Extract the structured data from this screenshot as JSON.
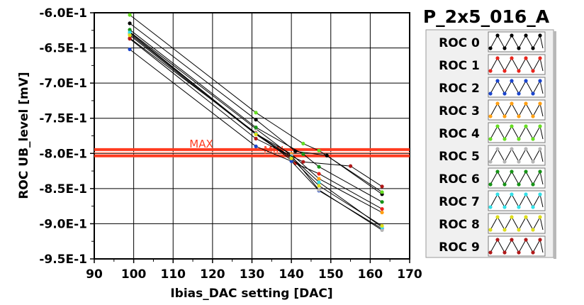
{
  "chart_data": {
    "type": "line",
    "title": "",
    "xlabel": "Ibias_DAC setting [DAC]",
    "ylabel": "ROC UB_level [mV]",
    "xlim": [
      90,
      170
    ],
    "ylim": [
      -0.95,
      -0.6
    ],
    "x_ticks": [
      "90",
      "100",
      "110",
      "120",
      "130",
      "140",
      "150",
      "160",
      "170"
    ],
    "y_ticks": [
      "-6.0E-1",
      "-6.5E-1",
      "-7.0E-1",
      "-7.5E-1",
      "-8.0E-1",
      "-8.5E-1",
      "-9.0E-1",
      "-9.5E-1"
    ],
    "grid": true,
    "legend_position": "right",
    "legend_title": "P_2x5_016_A",
    "reference_lines": [
      {
        "label": "MAX",
        "y": -0.7945,
        "color": "#ff3b1f"
      },
      {
        "label": "MIN",
        "y": -0.8035,
        "color": "#ff3b1f"
      }
    ],
    "series": [
      {
        "name": "ROC 0",
        "color": "#000000",
        "x": [
          99,
          131,
          141,
          149,
          163
        ],
        "y": [
          -0.615,
          -0.752,
          -0.797,
          -0.803,
          -0.858
        ]
      },
      {
        "name": "ROC 1",
        "color": "#e8241c",
        "x": [
          99,
          131,
          141,
          147,
          163
        ],
        "y": [
          -0.636,
          -0.771,
          -0.814,
          -0.829,
          -0.879
        ]
      },
      {
        "name": "ROC 2",
        "color": "#1a44cc",
        "x": [
          99,
          131,
          140,
          147,
          163
        ],
        "y": [
          -0.652,
          -0.79,
          -0.811,
          -0.853,
          -0.907
        ]
      },
      {
        "name": "ROC 3",
        "color": "#ff9f12",
        "x": [
          99,
          131,
          140,
          147,
          163
        ],
        "y": [
          -0.63,
          -0.772,
          -0.801,
          -0.836,
          -0.884
        ]
      },
      {
        "name": "ROC 4",
        "color": "#66dd22",
        "x": [
          99,
          131,
          143,
          147,
          163
        ],
        "y": [
          -0.603,
          -0.742,
          -0.786,
          -0.796,
          -0.855
        ]
      },
      {
        "name": "ROC 5",
        "color": "#b5b5b5",
        "x": [
          99,
          131,
          140,
          147,
          163
        ],
        "y": [
          -0.627,
          -0.765,
          -0.803,
          -0.852,
          -0.909
        ]
      },
      {
        "name": "ROC 6",
        "color": "#169216",
        "x": [
          99,
          131,
          143,
          147,
          163
        ],
        "y": [
          -0.624,
          -0.763,
          -0.801,
          -0.819,
          -0.869
        ]
      },
      {
        "name": "ROC 7",
        "color": "#33e0e8",
        "x": [
          99,
          131,
          140,
          147,
          163
        ],
        "y": [
          -0.628,
          -0.772,
          -0.805,
          -0.841,
          -0.905
        ]
      },
      {
        "name": "ROC 8",
        "color": "#dddd1a",
        "x": [
          99,
          131,
          140,
          147,
          163
        ],
        "y": [
          -0.632,
          -0.773,
          -0.807,
          -0.846,
          -0.903
        ]
      },
      {
        "name": "ROC 9",
        "color": "#b01818",
        "x": [
          99,
          131,
          143,
          155,
          163
        ],
        "y": [
          -0.637,
          -0.779,
          -0.812,
          -0.818,
          -0.847
        ]
      }
    ]
  }
}
